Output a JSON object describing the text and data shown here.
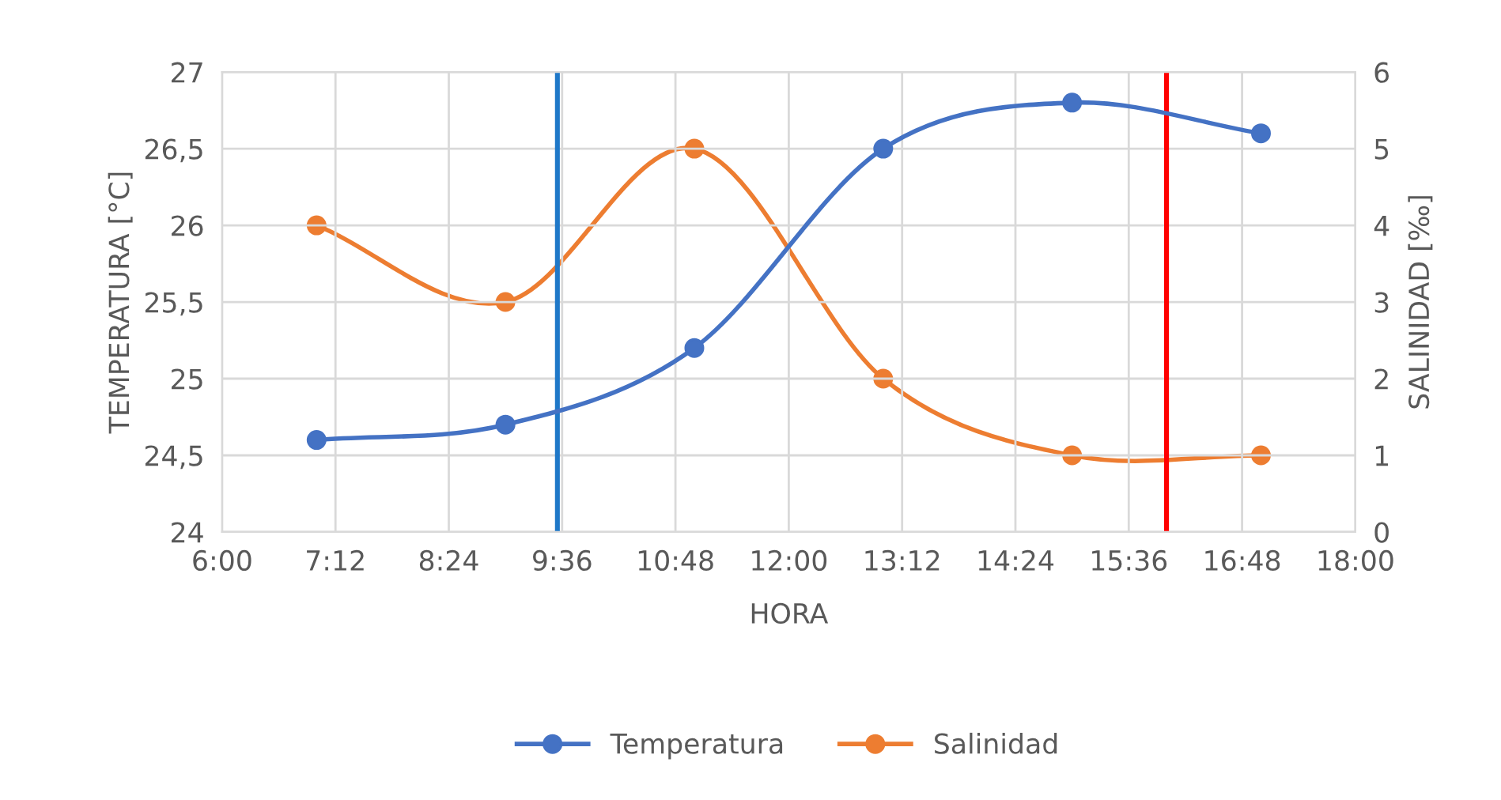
{
  "chart_data": {
    "type": "line",
    "xlabel": "HORA",
    "ylabel": "TEMPERATURA [°C]",
    "y2label": "SALINIDAD [‰]",
    "x": [
      7,
      9,
      11,
      13,
      15,
      17
    ],
    "series": [
      {
        "name": "Temperatura",
        "color": "#4472c4",
        "values": [
          24.6,
          24.7,
          25.2,
          26.5,
          26.8,
          26.6
        ]
      },
      {
        "name": "Salinidad",
        "color": "#ed7d31",
        "axis": "y2",
        "values": [
          4,
          3,
          5,
          2,
          1,
          1
        ]
      }
    ],
    "xlim": [
      6,
      18
    ],
    "xticks": [
      {
        "value": 6,
        "label": "6:00"
      },
      {
        "value": 7.2,
        "label": "7:12"
      },
      {
        "value": 8.4,
        "label": "8:24"
      },
      {
        "value": 9.6,
        "label": "9:36"
      },
      {
        "value": 10.8,
        "label": "10:48"
      },
      {
        "value": 12,
        "label": "12:00"
      },
      {
        "value": 13.2,
        "label": "13:12"
      },
      {
        "value": 14.4,
        "label": "14:24"
      },
      {
        "value": 15.6,
        "label": "15:36"
      },
      {
        "value": 16.8,
        "label": "16:48"
      },
      {
        "value": 18,
        "label": "18:00"
      }
    ],
    "ylim": [
      24,
      27
    ],
    "yticks": [
      {
        "value": 24,
        "label": "24"
      },
      {
        "value": 24.5,
        "label": "24,5"
      },
      {
        "value": 25,
        "label": "25"
      },
      {
        "value": 25.5,
        "label": "25,5"
      },
      {
        "value": 26,
        "label": "26"
      },
      {
        "value": 26.5,
        "label": "26,5"
      },
      {
        "value": 27,
        "label": "27"
      }
    ],
    "y2lim": [
      0,
      6
    ],
    "y2ticks": [
      0,
      1,
      2,
      3,
      4,
      5,
      6
    ],
    "ref_lines": [
      {
        "axis": "x",
        "value": 9.55,
        "color": "#1f78c8"
      },
      {
        "axis": "x",
        "value": 16,
        "color": "#ff0000"
      }
    ],
    "grid": true,
    "legend": "bottom",
    "marker": "circle",
    "line_style": "solid"
  }
}
